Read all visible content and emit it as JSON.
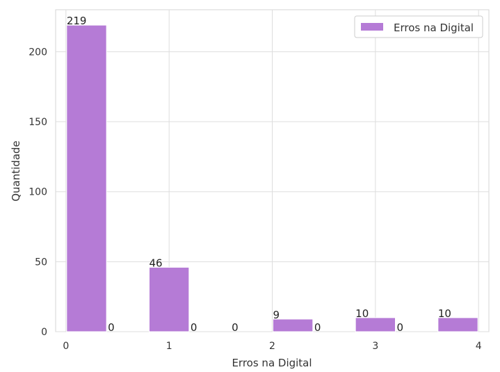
{
  "chart_data": {
    "type": "bar",
    "xlabel": "Erros na Digital",
    "ylabel": "Quantidade",
    "xlim": [
      -0.1,
      4.1
    ],
    "ylim": [
      0,
      230
    ],
    "x_ticks": [
      0,
      1,
      2,
      3,
      4
    ],
    "y_ticks": [
      0,
      50,
      100,
      150,
      200
    ],
    "grid": true,
    "legend_position": "top-right",
    "bar_color": "#b57bd6",
    "series": [
      {
        "name": "Erros na Digital",
        "color": "#b57bd6"
      }
    ],
    "bars": [
      {
        "x_start": 0.0,
        "x_end": 0.4,
        "value": 219
      },
      {
        "x_start": 0.4,
        "x_end": 0.8,
        "value": 0
      },
      {
        "x_start": 0.8,
        "x_end": 1.2,
        "value": 46
      },
      {
        "x_start": 1.2,
        "x_end": 1.6,
        "value": 0
      },
      {
        "x_start": 1.6,
        "x_end": 2.0,
        "value": 0
      },
      {
        "x_start": 2.0,
        "x_end": 2.4,
        "value": 9
      },
      {
        "x_start": 2.4,
        "x_end": 2.8,
        "value": 0
      },
      {
        "x_start": 2.8,
        "x_end": 3.2,
        "value": 10
      },
      {
        "x_start": 3.2,
        "x_end": 3.6,
        "value": 0
      },
      {
        "x_start": 3.6,
        "x_end": 4.0,
        "value": 10
      }
    ]
  }
}
